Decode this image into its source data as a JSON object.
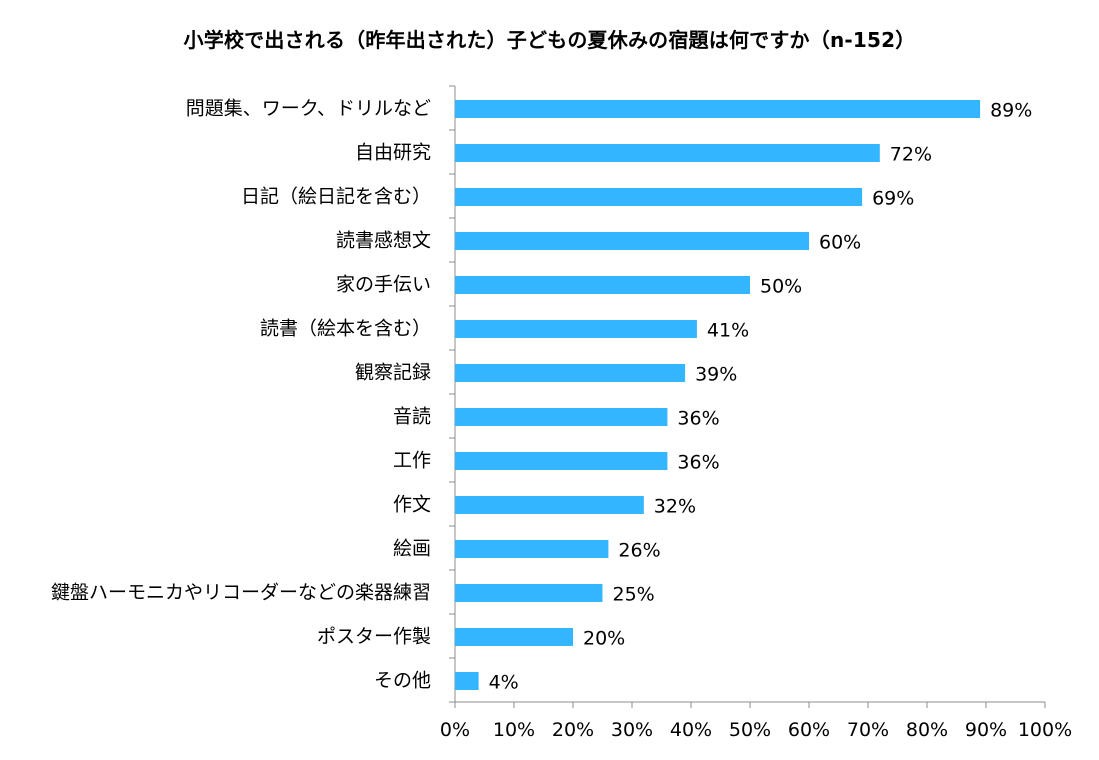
{
  "chart_data": {
    "type": "bar",
    "orientation": "horizontal",
    "title": "小学校で出される（昨年出された）子どもの夏休みの宿題は何ですか（n-152）",
    "categories": [
      "問題集、ワーク、ドリルなど",
      "自由研究",
      "日記（絵日記を含む）",
      "読書感想文",
      "家の手伝い",
      "読書（絵本を含む）",
      "観察記録",
      "音読",
      "工作",
      "作文",
      "絵画",
      "鍵盤ハーモニカやリコーダーなどの楽器練習",
      "ポスター作製",
      "その他"
    ],
    "values": [
      89,
      72,
      69,
      60,
      50,
      41,
      39,
      36,
      36,
      32,
      26,
      25,
      20,
      4
    ],
    "value_labels": [
      "89%",
      "72%",
      "69%",
      "60%",
      "50%",
      "41%",
      "39%",
      "36%",
      "36%",
      "32%",
      "26%",
      "25%",
      "20%",
      "4%"
    ],
    "xlim": [
      0,
      100
    ],
    "x_ticks": [
      "0%",
      "10%",
      "20%",
      "30%",
      "40%",
      "50%",
      "60%",
      "70%",
      "80%",
      "90%",
      "100%"
    ],
    "xlabel": "",
    "ylabel": "",
    "grid": false,
    "legend": "none",
    "bar_color": "#33b5ff"
  }
}
